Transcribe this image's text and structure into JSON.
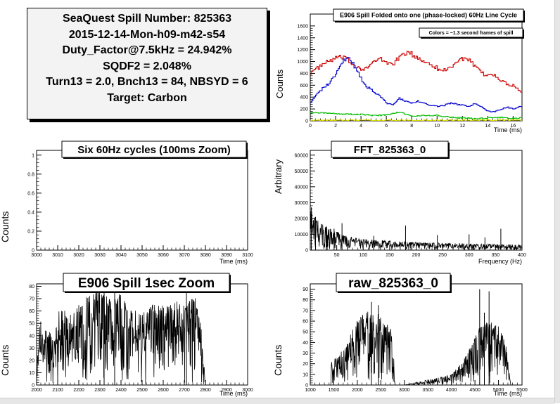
{
  "info": {
    "lines": [
      "SeaQuest Spill Number: 825363",
      "2015-12-14-Mon-h09-m42-s54",
      "Duty_Factor@7.5kHz = 24.942%",
      "SQDF2 = 2.048%",
      "Turn13 = 2.0, Bnch13 = 84, NBSYD = 6",
      "Target: Carbon"
    ]
  },
  "chart_data": [
    {
      "id": "folded",
      "type": "line",
      "title": "E906 Spill Folded onto one (phase-locked) 60Hz Line Cycle",
      "annotation": "Colors = ~1.3 second frames of spill",
      "xlabel": "Time (ms)",
      "ylabel": "Counts",
      "xlim": [
        0,
        16.7
      ],
      "ylim": [
        0,
        1800
      ],
      "xticks": [
        0,
        2,
        4,
        6,
        8,
        10,
        12,
        14,
        16
      ],
      "yticks": [
        0,
        200,
        400,
        600,
        800,
        1000,
        1200,
        1400,
        1600
      ],
      "series": [
        {
          "color": "#cc0000",
          "points": [
            [
              0,
              820
            ],
            [
              0.5,
              880
            ],
            [
              1,
              960
            ],
            [
              1.5,
              1010
            ],
            [
              2,
              1060
            ],
            [
              2.5,
              1070
            ],
            [
              3,
              1010
            ],
            [
              3.5,
              930
            ],
            [
              4,
              880
            ],
            [
              4.5,
              900
            ],
            [
              5,
              1000
            ],
            [
              5.5,
              1040
            ],
            [
              6,
              980
            ],
            [
              6.5,
              960
            ],
            [
              7,
              1070
            ],
            [
              7.5,
              1150
            ],
            [
              8,
              1120
            ],
            [
              8.5,
              1040
            ],
            [
              9,
              1000
            ],
            [
              9.5,
              960
            ],
            [
              10,
              880
            ],
            [
              10.5,
              850
            ],
            [
              11,
              900
            ],
            [
              11.5,
              1000
            ],
            [
              12,
              1050
            ],
            [
              12.5,
              1010
            ],
            [
              13,
              900
            ],
            [
              13.5,
              800
            ],
            [
              14,
              760
            ],
            [
              14.5,
              780
            ],
            [
              15,
              680
            ],
            [
              15.5,
              620
            ],
            [
              16,
              600
            ],
            [
              16.5,
              500
            ]
          ]
        },
        {
          "color": "#0000cc",
          "points": [
            [
              0,
              320
            ],
            [
              0.5,
              450
            ],
            [
              1,
              560
            ],
            [
              1.5,
              650
            ],
            [
              2,
              780
            ],
            [
              2.5,
              1000
            ],
            [
              3,
              1090
            ],
            [
              3.5,
              900
            ],
            [
              4,
              700
            ],
            [
              4.5,
              560
            ],
            [
              5,
              490
            ],
            [
              5.5,
              400
            ],
            [
              6,
              300
            ],
            [
              6.5,
              280
            ],
            [
              7,
              380
            ],
            [
              7.5,
              330
            ],
            [
              8,
              300
            ],
            [
              8.5,
              330
            ],
            [
              9,
              290
            ],
            [
              9.5,
              260
            ],
            [
              10,
              240
            ],
            [
              10.5,
              260
            ],
            [
              11,
              300
            ],
            [
              11.5,
              280
            ],
            [
              12,
              260
            ],
            [
              12.5,
              250
            ],
            [
              13,
              300
            ],
            [
              13.5,
              230
            ],
            [
              14,
              160
            ],
            [
              14.5,
              150
            ],
            [
              15,
              200
            ],
            [
              15.5,
              230
            ],
            [
              16,
              200
            ],
            [
              16.5,
              240
            ]
          ]
        },
        {
          "color": "#00bb00",
          "points": [
            [
              0,
              140
            ],
            [
              1,
              130
            ],
            [
              2,
              120
            ],
            [
              3,
              110
            ],
            [
              4,
              110
            ],
            [
              5,
              90
            ],
            [
              6,
              100
            ],
            [
              7,
              150
            ],
            [
              8,
              80
            ],
            [
              9,
              90
            ],
            [
              10,
              90
            ],
            [
              11,
              60
            ],
            [
              12,
              50
            ],
            [
              13,
              40
            ],
            [
              14,
              50
            ],
            [
              15,
              60
            ],
            [
              16,
              40
            ],
            [
              16.5,
              50
            ]
          ]
        },
        {
          "color": "#dddd00",
          "points": [
            [
              0,
              10
            ],
            [
              4,
              10
            ],
            [
              8,
              10
            ],
            [
              12,
              10
            ],
            [
              16.5,
              10
            ]
          ]
        }
      ]
    },
    {
      "id": "six60",
      "type": "line",
      "title": "Six 60Hz cycles (100ms Zoom)",
      "xlabel": "Time (ms)",
      "ylabel": "Counts",
      "xlim": [
        3000,
        3100
      ],
      "ylim": [
        0,
        1.05
      ],
      "xticks": [
        3000,
        3010,
        3020,
        3030,
        3040,
        3050,
        3060,
        3070,
        3080,
        3090,
        3100
      ],
      "yticks": [
        0,
        0.2,
        0.4,
        0.6,
        0.8,
        1
      ],
      "series": []
    },
    {
      "id": "fft",
      "type": "line",
      "title": "FFT_825363_0",
      "xlabel": "Frequency (Hz)",
      "ylabel": "Arbitrary",
      "xlim": [
        0,
        400
      ],
      "ylim": [
        0,
        63000
      ],
      "xticks": [
        50,
        100,
        150,
        200,
        250,
        300,
        350,
        400
      ],
      "yticks": [
        0,
        10000,
        20000,
        30000,
        40000,
        50000,
        60000
      ],
      "series": [
        {
          "color": "#000000",
          "envelope": [
            [
              0,
              25000
            ],
            [
              10,
              20000
            ],
            [
              20,
              17000
            ],
            [
              40,
              14000
            ],
            [
              60,
              10000
            ],
            [
              80,
              8000
            ],
            [
              100,
              7000
            ],
            [
              150,
              6000
            ],
            [
              200,
              5000
            ],
            [
              300,
              4000
            ],
            [
              400,
              3500
            ]
          ],
          "peaks": [
            [
              2,
              27000
            ],
            [
              10,
              21000
            ],
            [
              30,
              15000
            ],
            [
              45,
              13500
            ],
            [
              60,
              17000
            ],
            [
              120,
              9000
            ],
            [
              180,
              15500
            ],
            [
              240,
              9500
            ],
            [
              300,
              10000
            ],
            [
              330,
              8000
            ],
            [
              360,
              13500
            ]
          ]
        }
      ]
    },
    {
      "id": "zoom1s",
      "type": "line",
      "title": "E906 Spill 1sec Zoom",
      "xlabel": "Time (ms)",
      "ylabel": "Counts",
      "xlim": [
        2000,
        3000
      ],
      "ylim": [
        0,
        82
      ],
      "xticks": [
        2000,
        2100,
        2200,
        2300,
        2400,
        2500,
        2600,
        2700,
        2800,
        2900,
        3000
      ],
      "yticks": [
        0,
        10,
        20,
        30,
        40,
        50,
        60,
        70,
        80
      ],
      "series": [
        {
          "color": "#000000",
          "envelope": [
            [
              2000,
              5
            ],
            [
              2010,
              60
            ],
            [
              2030,
              45
            ],
            [
              2060,
              50
            ],
            [
              2080,
              35
            ],
            [
              2100,
              60
            ],
            [
              2130,
              62
            ],
            [
              2150,
              55
            ],
            [
              2200,
              65
            ],
            [
              2250,
              75
            ],
            [
              2300,
              78
            ],
            [
              2350,
              70
            ],
            [
              2400,
              75
            ],
            [
              2450,
              62
            ],
            [
              2500,
              58
            ],
            [
              2550,
              66
            ],
            [
              2600,
              65
            ],
            [
              2650,
              70
            ],
            [
              2700,
              65
            ],
            [
              2750,
              72
            ],
            [
              2780,
              50
            ],
            [
              2800,
              0
            ],
            [
              3000,
              0
            ]
          ],
          "peaks": [
            [
              2320,
              78
            ],
            [
              2370,
              76
            ],
            [
              2710,
              79
            ]
          ]
        }
      ]
    },
    {
      "id": "raw",
      "type": "line",
      "title": "raw_825363_0",
      "xlabel": "Time (ms)",
      "ylabel": "Counts",
      "xlim": [
        1000,
        5500
      ],
      "ylim": [
        0,
        95
      ],
      "xticks": [
        1000,
        1500,
        2000,
        2500,
        3000,
        3500,
        4000,
        4500,
        5000,
        5500
      ],
      "yticks": [
        0,
        10,
        20,
        30,
        40,
        50,
        60,
        70,
        80,
        90
      ],
      "series": [
        {
          "color": "#000000",
          "envelope": [
            [
              1000,
              0
            ],
            [
              1440,
              0
            ],
            [
              1450,
              22
            ],
            [
              1600,
              28
            ],
            [
              1800,
              40
            ],
            [
              1900,
              55
            ],
            [
              2000,
              62
            ],
            [
              2200,
              70
            ],
            [
              2400,
              70
            ],
            [
              2500,
              68
            ],
            [
              2600,
              60
            ],
            [
              2750,
              50
            ],
            [
              2800,
              0
            ],
            [
              3000,
              0
            ],
            [
              3400,
              4
            ],
            [
              4000,
              10
            ],
            [
              4200,
              20
            ],
            [
              4400,
              35
            ],
            [
              4600,
              55
            ],
            [
              4800,
              60
            ],
            [
              5000,
              55
            ],
            [
              5150,
              42
            ],
            [
              5260,
              0
            ],
            [
              5500,
              0
            ]
          ],
          "peaks": [
            [
              2300,
              78
            ],
            [
              2450,
              75
            ],
            [
              4600,
              90
            ],
            [
              4800,
              88
            ],
            [
              4700,
              68
            ]
          ]
        }
      ]
    }
  ]
}
